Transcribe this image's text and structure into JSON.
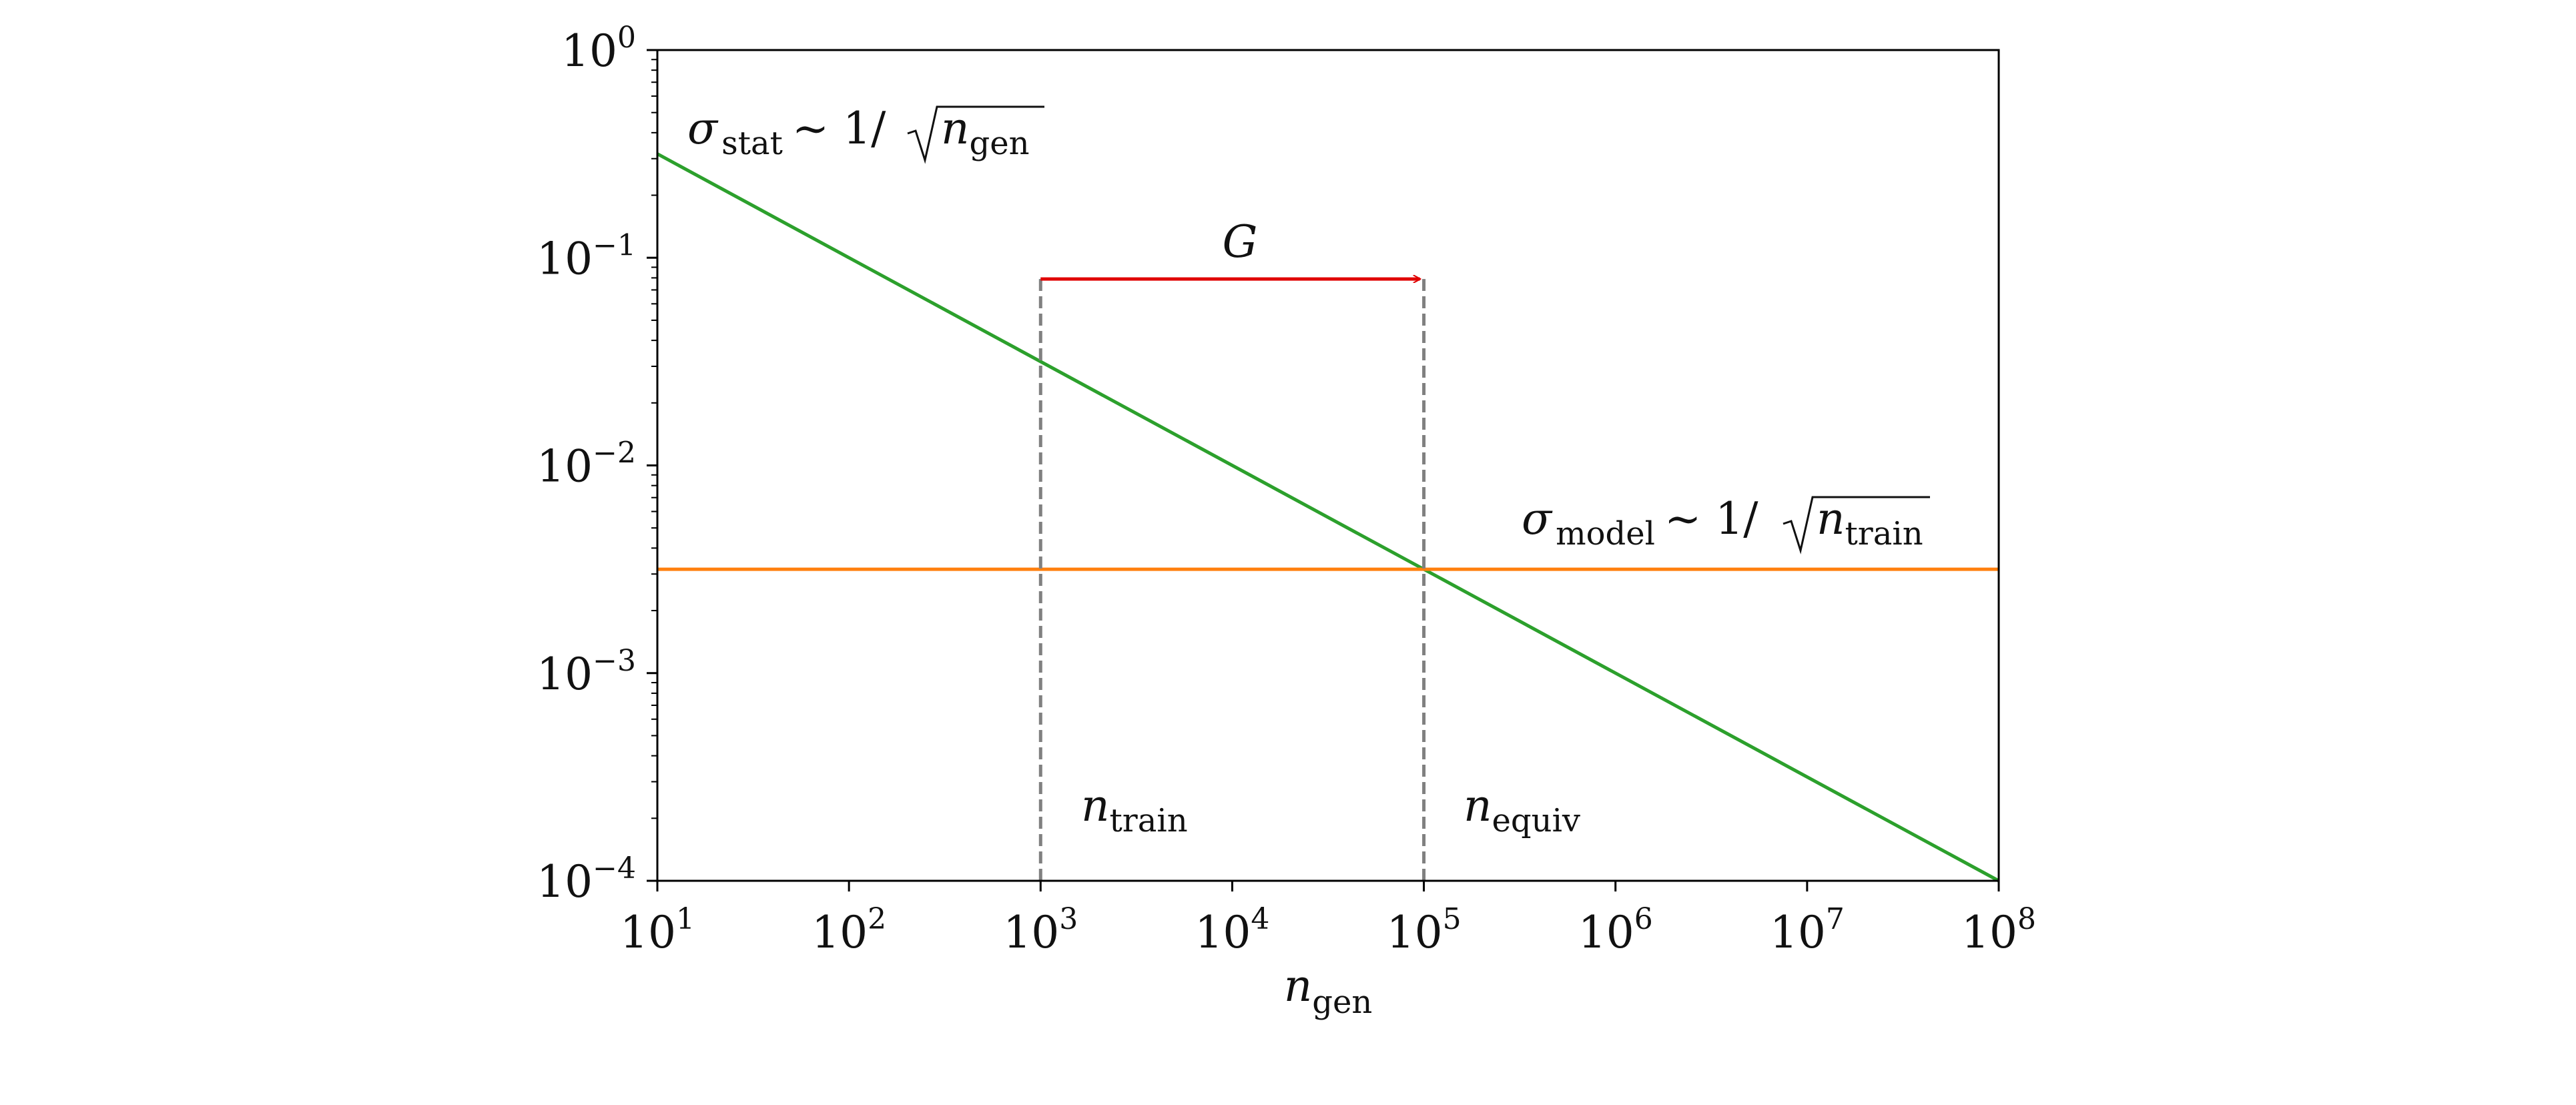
{
  "chart_data": {
    "type": "line",
    "xscale": "log",
    "yscale": "log",
    "xlim": [
      10,
      100000000
    ],
    "ylim": [
      0.0001,
      1
    ],
    "grid": false,
    "xlabel": {
      "base": "n",
      "sub": "gen"
    },
    "xticks": [
      {
        "value": 10,
        "base": "10",
        "exp": "1"
      },
      {
        "value": 100,
        "base": "10",
        "exp": "2"
      },
      {
        "value": 1000,
        "base": "10",
        "exp": "3"
      },
      {
        "value": 10000,
        "base": "10",
        "exp": "4"
      },
      {
        "value": 100000,
        "base": "10",
        "exp": "5"
      },
      {
        "value": 1000000,
        "base": "10",
        "exp": "6"
      },
      {
        "value": 10000000,
        "base": "10",
        "exp": "7"
      },
      {
        "value": 100000000,
        "base": "10",
        "exp": "8"
      }
    ],
    "yticks": [
      {
        "value": 1,
        "base": "10",
        "exp": "0"
      },
      {
        "value": 0.1,
        "base": "10",
        "exp": "−1"
      },
      {
        "value": 0.01,
        "base": "10",
        "exp": "−2"
      },
      {
        "value": 0.001,
        "base": "10",
        "exp": "−3"
      },
      {
        "value": 0.0001,
        "base": "10",
        "exp": "−4"
      }
    ],
    "series": [
      {
        "label": {
          "sigma": "σ",
          "sub": "stat",
          "rel": "∼ 1/",
          "rad_base": "n",
          "rad_sub": "gen"
        },
        "color": "#2ca02c",
        "x": [
          10,
          100000000
        ],
        "y": [
          0.3162,
          0.0001
        ]
      },
      {
        "label": {
          "sigma": "σ",
          "sub": "model",
          "rel": "∼ 1/",
          "rad_base": "n",
          "rad_sub": "train"
        },
        "color": "#ff7f0e",
        "x": [
          10,
          100000000
        ],
        "y": [
          0.003162,
          0.003162
        ]
      }
    ],
    "vlines": [
      {
        "x": 1000,
        "color": "#808080",
        "style": "dashed",
        "ymax": 0.079,
        "label": {
          "base": "n",
          "sub": "train"
        }
      },
      {
        "x": 100000,
        "color": "#808080",
        "style": "dashed",
        "ymax": 0.079,
        "label": {
          "base": "n",
          "sub": "equiv"
        }
      }
    ],
    "arrow": {
      "x_start": 1000,
      "x_end": 100000,
      "y": 0.079,
      "color": "#e00000",
      "label": "G"
    }
  }
}
